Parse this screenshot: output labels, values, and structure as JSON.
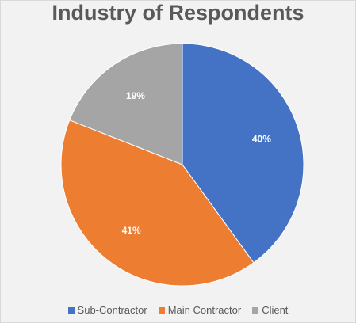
{
  "chart_data": {
    "type": "pie",
    "title": "Industry of Respondents",
    "categories": [
      "Sub-Contractor",
      "Main Contractor",
      "Client"
    ],
    "values": [
      40,
      41,
      19
    ],
    "labels": [
      "40%",
      "41%",
      "19%"
    ],
    "colors": [
      "#4472c4",
      "#ed7d31",
      "#a5a5a5"
    ],
    "legend_position": "bottom"
  }
}
